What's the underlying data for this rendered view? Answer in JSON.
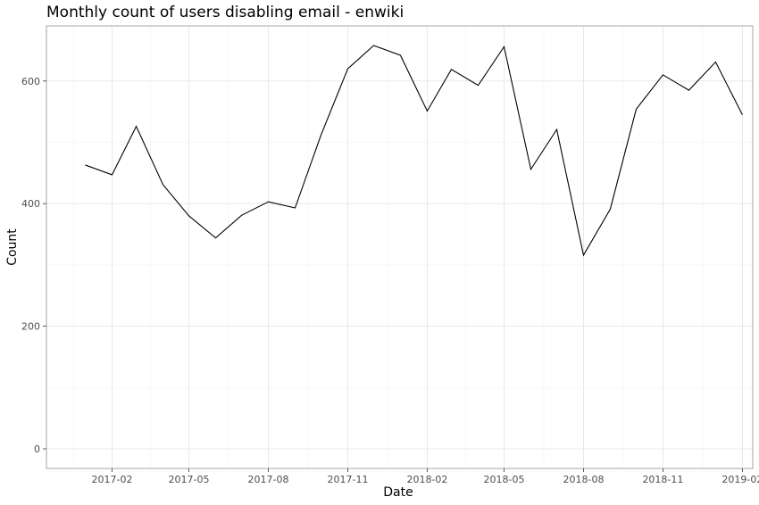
{
  "chart_data": {
    "type": "line",
    "title": "Monthly count of users disabling email - enwiki",
    "xlabel": "Date",
    "ylabel": "Count",
    "xlim": [
      "2016-11-17",
      "2019-02-13"
    ],
    "ylim": [
      -32,
      690
    ],
    "x_ticks": [
      {
        "date": "2017-02-01",
        "label": "2017-02"
      },
      {
        "date": "2017-05-01",
        "label": "2017-05"
      },
      {
        "date": "2017-08-01",
        "label": "2017-08"
      },
      {
        "date": "2017-11-01",
        "label": "2017-11"
      },
      {
        "date": "2018-02-01",
        "label": "2018-02"
      },
      {
        "date": "2018-05-01",
        "label": "2018-05"
      },
      {
        "date": "2018-08-01",
        "label": "2018-08"
      },
      {
        "date": "2018-11-01",
        "label": "2018-11"
      },
      {
        "date": "2019-02-01",
        "label": "2019-02"
      }
    ],
    "y_ticks": [
      {
        "value": 0,
        "label": "0"
      },
      {
        "value": 200,
        "label": "200"
      },
      {
        "value": 400,
        "label": "400"
      },
      {
        "value": 600,
        "label": "600"
      }
    ],
    "grid": true,
    "series": [
      {
        "color": "#000000",
        "x": [
          "2017-01-01",
          "2017-02-01",
          "2017-03-01",
          "2017-04-01",
          "2017-05-01",
          "2017-06-01",
          "2017-07-01",
          "2017-08-01",
          "2017-09-01",
          "2017-10-01",
          "2017-11-01",
          "2017-12-01",
          "2018-01-01",
          "2018-02-01",
          "2018-03-01",
          "2018-04-01",
          "2018-05-01",
          "2018-06-01",
          "2018-07-01",
          "2018-08-01",
          "2018-09-01",
          "2018-10-01",
          "2018-11-01",
          "2018-12-01",
          "2019-01-01",
          "2019-02-01"
        ],
        "y": [
          463,
          447,
          526,
          431,
          380,
          344,
          381,
          403,
          393,
          512,
          620,
          658,
          642,
          551,
          619,
          593,
          656,
          456,
          521,
          316,
          391,
          554,
          610,
          585,
          631,
          545
        ]
      }
    ]
  }
}
